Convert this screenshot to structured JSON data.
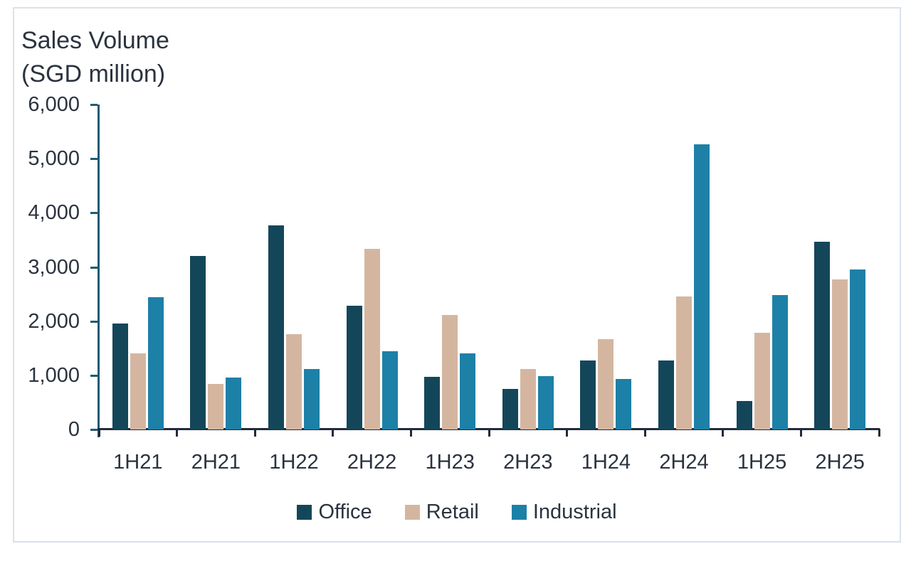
{
  "chart_data": {
    "type": "bar",
    "title": "Sales Volume",
    "subtitle": "(SGD million)",
    "categories": [
      "1H21",
      "2H21",
      "1H22",
      "2H22",
      "1H23",
      "2H23",
      "1H24",
      "2H24",
      "1H25",
      "2H25"
    ],
    "series": [
      {
        "name": "Office",
        "color": "#14465a",
        "values": [
          1950,
          3200,
          3770,
          2290,
          970,
          750,
          1270,
          1280,
          520,
          3470
        ]
      },
      {
        "name": "Retail",
        "color": "#d4b6a0",
        "values": [
          1400,
          840,
          1760,
          3340,
          2110,
          1110,
          1670,
          2450,
          1780,
          2770
        ]
      },
      {
        "name": "Industrial",
        "color": "#1d80a7",
        "values": [
          2440,
          960,
          1110,
          1450,
          1400,
          980,
          930,
          5270,
          2480,
          2960
        ]
      }
    ],
    "ylim": [
      0,
      6000
    ],
    "ytick_step": 1000,
    "grid": false,
    "legend_position": "bottom",
    "axis_colors": {
      "y_axis": "#1f5b73",
      "x_axis": "#212b3a"
    }
  }
}
